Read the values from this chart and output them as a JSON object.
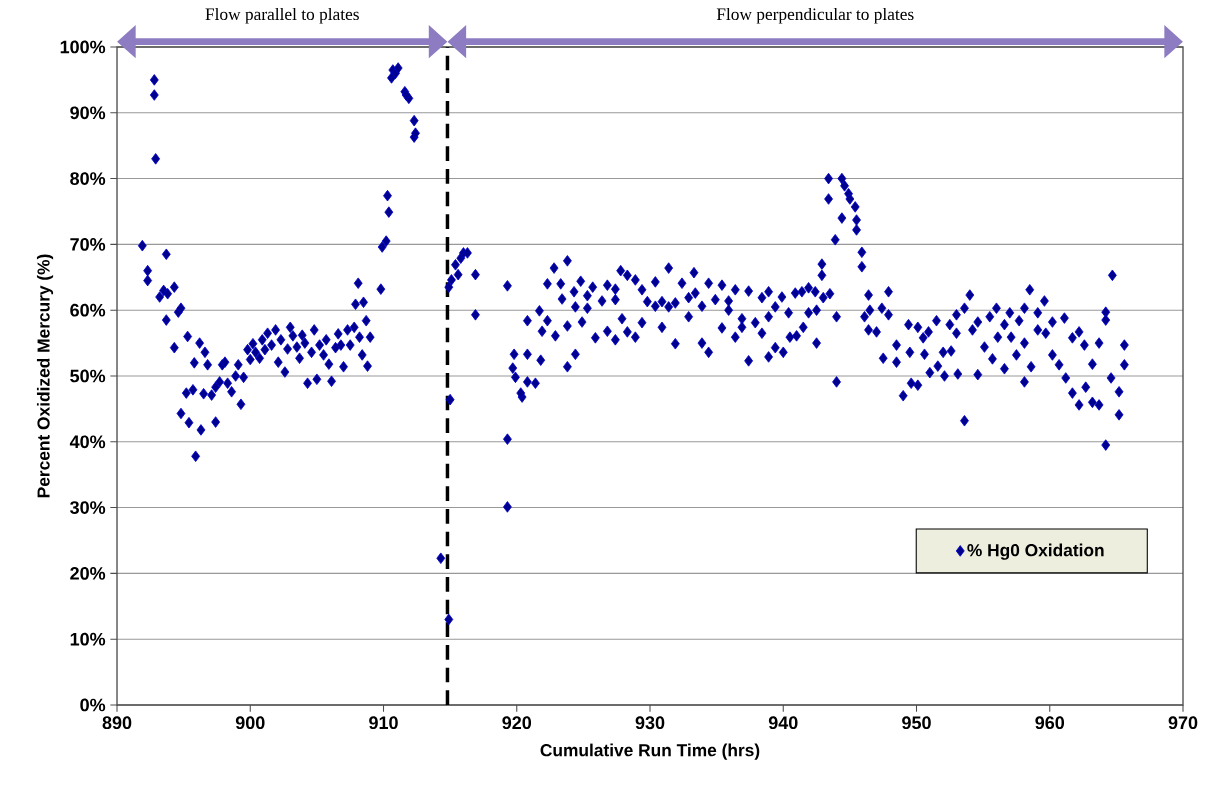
{
  "chart_data": {
    "type": "scatter",
    "xlabel": "Cumulative Run Time (hrs)",
    "ylabel": "Percent Oxidized Mercury (%)",
    "annotations": [
      "Flow parallel to plates",
      "Flow perpendicular to plates"
    ],
    "xlim": [
      890,
      970
    ],
    "xticks": [
      890,
      900,
      910,
      920,
      930,
      940,
      950,
      960,
      970
    ],
    "ylim": [
      0,
      100
    ],
    "yticks": [
      {
        "value": 0,
        "label": "0%"
      },
      {
        "value": 10,
        "label": "10%"
      },
      {
        "value": 20,
        "label": "20%"
      },
      {
        "value": 30,
        "label": "30%"
      },
      {
        "value": 40,
        "label": "40%"
      },
      {
        "value": 50,
        "label": "50%"
      },
      {
        "value": 60,
        "label": "60%"
      },
      {
        "value": 70,
        "label": "70%"
      },
      {
        "value": 80,
        "label": "80%"
      },
      {
        "value": 90,
        "label": "90%"
      },
      {
        "value": 100,
        "label": "100%"
      }
    ],
    "grid": "y",
    "legend": "bottom right",
    "marker": "diamond",
    "ref_lines": [
      {
        "axis": "x",
        "value": 914.8,
        "color": "#000000",
        "line_style": "dashed"
      }
    ],
    "series": [
      {
        "name": "% Hg0 Oxidation",
        "color": "#0000cc",
        "x": [
          891.9,
          892.3,
          892.3,
          892.8,
          892.8,
          892.9,
          893.2,
          893.5,
          893.8,
          893.7,
          893.7,
          894.3,
          894.3,
          894.6,
          894.8,
          894.8,
          895.3,
          895.2,
          895.4,
          895.7,
          895.8,
          895.9,
          896.2,
          896.3,
          896.5,
          896.6,
          896.8,
          897.1,
          897.4,
          897.4,
          897.7,
          897.9,
          898.1,
          898.3,
          898.6,
          898.9,
          899.1,
          899.3,
          899.5,
          899.8,
          900,
          900.2,
          900.4,
          900.7,
          900.9,
          901.1,
          901.3,
          901.6,
          901.9,
          902.1,
          902.3,
          902.6,
          902.8,
          903,
          903.2,
          903.5,
          903.7,
          903.9,
          904.1,
          904.3,
          904.6,
          904.8,
          905,
          905.2,
          905.5,
          905.7,
          905.9,
          906.1,
          906.4,
          906.6,
          906.8,
          907,
          907.3,
          907.5,
          907.8,
          907.9,
          908.1,
          908.2,
          908.4,
          908.5,
          908.7,
          908.8,
          909,
          909.8,
          909.9,
          910.2,
          910.4,
          910.3,
          910.7,
          910.9,
          911.1,
          910.6,
          911.6,
          911.9,
          911.7,
          912.3,
          912.3,
          912.4,
          914.3,
          914.9,
          915,
          914.9,
          915.1,
          915.4,
          915.6,
          915.8,
          916,
          916.3,
          916.9,
          916.9,
          919.3,
          919.3,
          919.3,
          919.8,
          919.7,
          919.9,
          920.4,
          920.3,
          920.8,
          920.8,
          920.8,
          921.4,
          921.8,
          921.7,
          921.9,
          922.3,
          922.3,
          922.8,
          922.9,
          923.3,
          923.4,
          923.8,
          923.8,
          923.8,
          924.4,
          924.3,
          924.4,
          924.8,
          924.9,
          925.3,
          925.3,
          925.7,
          925.9,
          926.4,
          926.8,
          926.8,
          927.4,
          927.4,
          927.4,
          927.8,
          927.9,
          928.3,
          928.3,
          928.9,
          928.9,
          929.4,
          929.4,
          929.8,
          930.4,
          930.4,
          930.9,
          930.9,
          931.4,
          931.4,
          931.9,
          931.9,
          932.4,
          932.9,
          932.9,
          933.3,
          933.4,
          933.9,
          933.9,
          934.4,
          934.4,
          934.9,
          935.4,
          935.4,
          935.9,
          935.9,
          936.4,
          936.4,
          936.9,
          936.9,
          937.4,
          937.4,
          937.9,
          938.4,
          938.4,
          938.9,
          938.9,
          938.9,
          939.4,
          939.4,
          939.9,
          940,
          940.4,
          940.5,
          940.9,
          941,
          941.4,
          941.5,
          941.9,
          941.9,
          942.4,
          942.5,
          942.5,
          942.9,
          942.9,
          943,
          943.5,
          943.9,
          944,
          944,
          943.4,
          943.4,
          944.4,
          944.6,
          944.9,
          945,
          945.4,
          944.4,
          945.5,
          945.5,
          945.9,
          945.9,
          946.4,
          946.1,
          946.5,
          946.4,
          947,
          947.4,
          947.9,
          947.9,
          947.5,
          948.5,
          948.5,
          949,
          949.4,
          949.5,
          949.6,
          950.1,
          950.1,
          950.5,
          950.6,
          950.9,
          951,
          951.5,
          951.6,
          952,
          952.1,
          952.5,
          952.6,
          953,
          953,
          953.1,
          953.6,
          953.6,
          954,
          954.2,
          954.6,
          954.6,
          955.1,
          955.5,
          955.7,
          956,
          956.1,
          956.6,
          956.6,
          957,
          957.1,
          957.5,
          957.7,
          958.1,
          958.1,
          958.1,
          958.5,
          958.6,
          959.1,
          959.1,
          959.6,
          959.7,
          960.2,
          960.2,
          960.7,
          961.1,
          961.2,
          961.7,
          961.7,
          962.2,
          962.2,
          962.6,
          962.7,
          963.2,
          963.2,
          963.7,
          963.7,
          964.2,
          964.2,
          964.2,
          964.7,
          964.6,
          965.2,
          965.2,
          965.6,
          965.6
        ],
        "values": [
          69.8,
          66,
          64.5,
          95,
          92.7,
          83,
          62,
          63,
          62.5,
          68.5,
          58.5,
          63.5,
          54.3,
          59.7,
          60.3,
          44.3,
          56,
          47.4,
          42.9,
          47.9,
          52,
          37.8,
          55,
          41.8,
          47.3,
          53.6,
          51.7,
          47.1,
          43,
          48.3,
          49.1,
          51.7,
          52.1,
          48.9,
          47.6,
          50,
          51.7,
          45.7,
          49.8,
          54,
          52.5,
          54.9,
          53.6,
          52.7,
          55.5,
          54,
          56.5,
          54.7,
          57,
          52.1,
          55.5,
          50.6,
          54.1,
          57.4,
          56.1,
          54.4,
          52.7,
          56.2,
          55,
          48.9,
          53.6,
          57,
          49.5,
          54.7,
          53.2,
          55.5,
          51.8,
          49.2,
          54.3,
          56.4,
          54.7,
          51.4,
          57,
          54.7,
          57.4,
          60.9,
          64.1,
          55.9,
          53.2,
          61.2,
          58.4,
          51.5,
          55.9,
          63.2,
          69.6,
          70.5,
          74.9,
          77.4,
          96.5,
          96,
          96.8,
          95.3,
          93.2,
          92.2,
          92.7,
          88.8,
          86.3,
          86.9,
          22.3,
          13,
          46.4,
          63.5,
          64.6,
          66.9,
          65.4,
          67.9,
          68.7,
          68.7,
          65.4,
          59.3,
          63.7,
          40.4,
          30.1,
          53.3,
          51.2,
          49.8,
          46.8,
          47.4,
          53.3,
          58.4,
          49.1,
          48.9,
          52.4,
          59.9,
          56.8,
          64,
          58.4,
          66.4,
          56.1,
          64,
          61.7,
          67.5,
          57.6,
          51.4,
          53.3,
          62.8,
          60.5,
          64.4,
          58.2,
          60.3,
          62.2,
          63.5,
          55.8,
          61.4,
          63.8,
          56.8,
          55.5,
          61.6,
          63.2,
          66,
          58.7,
          65.3,
          56.7,
          64.6,
          55.9,
          63.1,
          58.1,
          61.3,
          64.3,
          60.6,
          57.4,
          61.3,
          66.4,
          60.5,
          54.9,
          61.1,
          64.1,
          59,
          61.9,
          65.7,
          62.6,
          60.6,
          55,
          53.6,
          64.1,
          61.6,
          57.3,
          63.8,
          61.4,
          60,
          55.9,
          63.1,
          58.7,
          57.4,
          52.3,
          62.9,
          58.1,
          56.5,
          61.9,
          62.8,
          59,
          52.9,
          54.3,
          60.5,
          62,
          53.6,
          59.6,
          55.9,
          62.6,
          56.1,
          62.8,
          57.4,
          63.4,
          59.6,
          62.8,
          55,
          60,
          67,
          65.3,
          61.9,
          62.5,
          70.7,
          59,
          49.1,
          80,
          76.9,
          80,
          78.9,
          77.7,
          76.9,
          75.7,
          74,
          73.7,
          72.2,
          68.8,
          66.6,
          62.3,
          59,
          60,
          57,
          56.7,
          60.3,
          62.8,
          59.3,
          52.7,
          54.7,
          52.1,
          47,
          57.8,
          53.6,
          48.9,
          48.6,
          57.4,
          55.8,
          53.3,
          56.7,
          50.5,
          58.4,
          51.5,
          53.6,
          50,
          57.8,
          53.8,
          59.3,
          56.5,
          50.3,
          43.2,
          60.3,
          62.3,
          57,
          50.2,
          58.2,
          54.4,
          59,
          52.6,
          60.3,
          55.9,
          51.1,
          57.8,
          59.6,
          55.9,
          53.2,
          58.4,
          60.3,
          55,
          49.1,
          63.1,
          51.4,
          59.6,
          57,
          61.4,
          56.5,
          58.2,
          53.2,
          51.7,
          58.8,
          49.7,
          55.8,
          47.4,
          56.7,
          45.6,
          54.7,
          48.3,
          51.8,
          46,
          55,
          45.6,
          59.7,
          39.5,
          58.5,
          65.3,
          49.7,
          47.6,
          44.1,
          54.7,
          51.7
        ]
      }
    ]
  }
}
